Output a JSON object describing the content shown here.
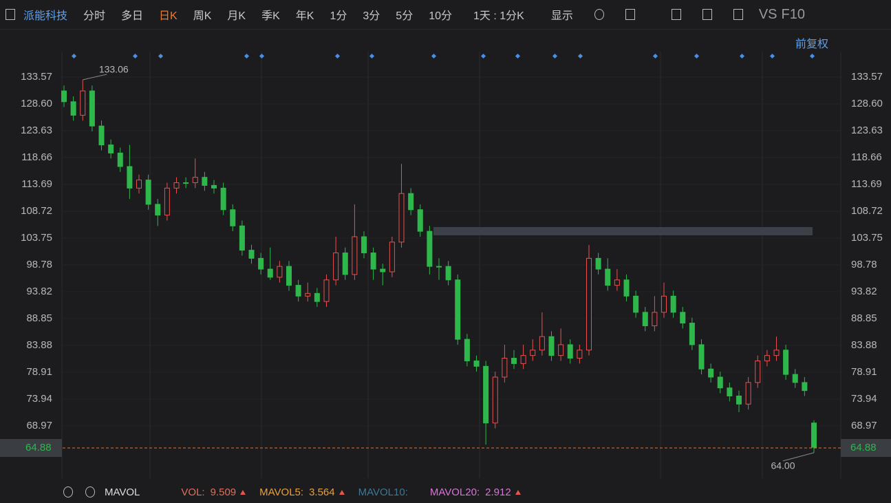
{
  "toolbar": {
    "stock": "派能科技",
    "tabs": [
      "分时",
      "多日",
      "日K",
      "周K",
      "月K",
      "季K",
      "年K",
      "1分",
      "3分",
      "5分",
      "10分"
    ],
    "period": "1天 : 1分K",
    "display": "显示",
    "vs": "VS",
    "f10": "F10",
    "adjust": "前复权"
  },
  "chart_data": {
    "type": "candlestick",
    "up_color": "#e8514f",
    "down_color": "#2eb84c",
    "open": [
      131,
      129,
      126.5,
      131,
      124.5,
      121,
      119.5,
      117,
      113,
      114.5,
      110,
      108,
      113,
      114,
      114,
      115,
      113.5,
      113,
      109,
      106,
      101.5,
      100,
      98,
      96.5,
      98.5,
      95,
      93,
      93.5,
      92,
      96,
      101,
      97,
      104,
      101,
      98,
      97.5,
      103,
      112,
      109,
      105,
      98.5,
      98.5,
      96,
      85,
      81,
      80,
      69.5,
      78,
      81.5,
      80.5,
      82,
      83,
      85.5,
      82,
      84,
      81.5,
      83,
      100,
      98,
      95,
      96,
      93,
      90,
      87.5,
      90,
      93,
      90,
      88,
      84,
      79.5,
      78,
      76,
      74.5,
      73,
      77,
      81,
      82,
      83,
      78.5,
      77,
      69.5
    ],
    "high": [
      132,
      130,
      133.06,
      132,
      125.5,
      122,
      120.5,
      121,
      115.5,
      115.5,
      111,
      114,
      115,
      115,
      118.5,
      116,
      114.5,
      114,
      110,
      107,
      102.5,
      101,
      102,
      99.5,
      99.5,
      96,
      95.5,
      94.5,
      97,
      104,
      102,
      110,
      105,
      102,
      99,
      104,
      117.5,
      113,
      110,
      106,
      100,
      99.5,
      97,
      86,
      82,
      81,
      79,
      84,
      83,
      84,
      85,
      90,
      86.5,
      87,
      85,
      84,
      102.5,
      101,
      100,
      98,
      97,
      94,
      91,
      93,
      95.5,
      94,
      91,
      89,
      85,
      80.5,
      79,
      77,
      75.5,
      78,
      82,
      83,
      85.5,
      84,
      79.5,
      78,
      70
    ],
    "low": [
      128,
      125.5,
      125.5,
      123.5,
      120,
      118.5,
      116,
      111,
      112,
      109,
      106,
      107,
      112,
      113,
      113,
      112.5,
      112,
      108,
      105,
      100.5,
      99,
      97,
      96,
      95.5,
      94,
      92,
      92,
      91,
      91,
      95,
      96,
      96,
      100,
      96,
      95,
      96.5,
      102,
      108,
      104,
      97,
      96,
      95,
      84,
      80,
      79,
      65.5,
      68.5,
      77,
      79.5,
      79.5,
      81,
      82,
      81,
      81,
      80.5,
      80.5,
      82,
      97,
      94,
      94,
      92,
      89,
      86.5,
      86.5,
      89,
      89,
      87,
      83,
      78.5,
      77,
      75,
      73.5,
      71.5,
      72,
      76,
      80,
      81,
      77.5,
      76,
      74.5,
      64.0
    ],
    "close": [
      129,
      126.5,
      131,
      124.5,
      121,
      119.5,
      117,
      113,
      114.5,
      110,
      108,
      113,
      114,
      114,
      115,
      113.5,
      113,
      109,
      106,
      101.5,
      100,
      98,
      96.5,
      98.5,
      95,
      93,
      93.5,
      92,
      96,
      101,
      97,
      104,
      101,
      98,
      97.5,
      103,
      112,
      109,
      105,
      98.5,
      98.5,
      96,
      85,
      81,
      80,
      69.5,
      78,
      81.5,
      80.5,
      82,
      83,
      85.5,
      82,
      84,
      81.5,
      83,
      100,
      98,
      95,
      96,
      93,
      90,
      87.5,
      90,
      93,
      90,
      88,
      84,
      79.5,
      78,
      76,
      74.5,
      73,
      77,
      81,
      82,
      83,
      78.5,
      77,
      75.5,
      65
    ],
    "ylim": [
      59.27,
      138.28
    ],
    "yticks": [
      133.57,
      {
        "value": 128.6,
        "label": "128.60"
      },
      123.63,
      118.66,
      113.69,
      108.72,
      103.75,
      98.78,
      93.82,
      88.85,
      83.88,
      78.91,
      73.94,
      68.97
    ],
    "current_price": 64.88,
    "annotations": [
      133.06,
      {
        "value": 64,
        "label": "64.00"
      }
    ]
  },
  "indicators": {
    "name": "MAVOL",
    "items": [
      {
        "label": "VOL:",
        "value": 9.509,
        "color": "#e0705c"
      },
      {
        "label": "MAVOL5:",
        "value": 3.564,
        "color": "#e8a040"
      },
      {
        "label": "MAVOL10:",
        "color": "#3b7898"
      },
      {
        "label": "MAVOL20:",
        "value": 2.912,
        "color": "#d676d6"
      }
    ]
  }
}
